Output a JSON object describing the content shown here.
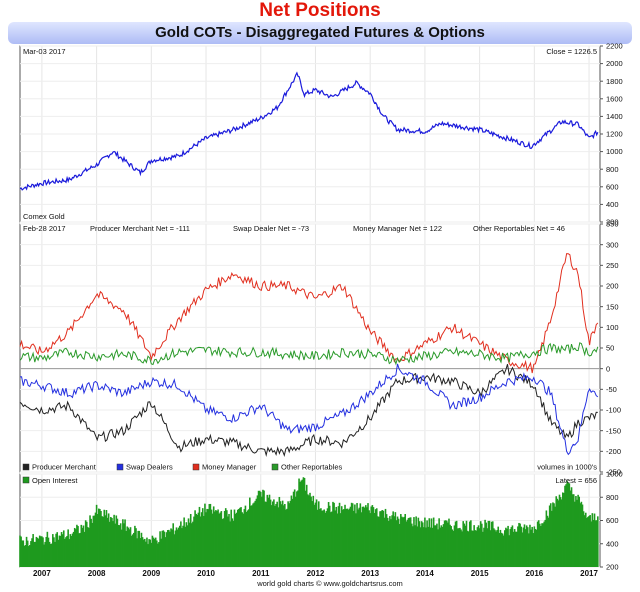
{
  "header": {
    "title": "Net Positions",
    "subtitle": "Gold COTs - Disaggregated Futures & Options"
  },
  "footer": {
    "source": "world gold charts © www.goldchartsrus.com"
  },
  "colors": {
    "price": "#1a1adb",
    "producer": "#222222",
    "swap": "#2430e0",
    "money": "#e12f1f",
    "other": "#2a9a2a",
    "oi": "#1f9a1f"
  },
  "chart_data": [
    {
      "type": "line",
      "panel": "price",
      "date_label": "Mar-03  2017",
      "close_label": "Close = 1226.5",
      "series_label": "Comex Gold",
      "ylim": [
        200,
        2200
      ],
      "yticks": [
        "200",
        "400",
        "600",
        "800",
        "1000",
        "1200",
        "1400",
        "1600",
        "1800",
        "2000",
        "2200"
      ],
      "x": [
        2006.6,
        2007.0,
        2007.5,
        2008.0,
        2008.3,
        2008.8,
        2009.0,
        2009.5,
        2010.0,
        2010.5,
        2011.0,
        2011.3,
        2011.67,
        2011.8,
        2012.0,
        2012.3,
        2012.75,
        2013.0,
        2013.25,
        2013.5,
        2014.0,
        2014.3,
        2015.0,
        2015.5,
        2015.95,
        2016.5,
        2016.8,
        2017.0,
        2017.17
      ],
      "y": [
        580,
        640,
        680,
        850,
        1000,
        760,
        900,
        950,
        1150,
        1250,
        1380,
        1500,
        1880,
        1650,
        1700,
        1620,
        1780,
        1660,
        1400,
        1250,
        1230,
        1320,
        1250,
        1150,
        1060,
        1340,
        1310,
        1150,
        1226
      ]
    },
    {
      "type": "line",
      "panel": "net-positions",
      "date_label": "Feb-28  2017",
      "labels": {
        "producer": "Producer Merchant Net = -111",
        "swap": "Swap Dealer Net = -73",
        "money": "Money Manager Net = 122",
        "other": "Other Reportables Net = 46"
      },
      "units_label": "volumes in 1000's",
      "ylim": [
        -250,
        350
      ],
      "yticks": [
        "-250",
        "-200",
        "-150",
        "-100",
        "-50",
        "0",
        "50",
        "100",
        "150",
        "200",
        "250",
        "300",
        "350"
      ],
      "series": [
        {
          "name": "Producer Merchant",
          "color": "#222222",
          "x": [
            2006.6,
            2007.0,
            2007.5,
            2008.0,
            2008.5,
            2009.0,
            2009.5,
            2010.0,
            2010.5,
            2011.0,
            2011.5,
            2012.0,
            2012.5,
            2013.0,
            2013.5,
            2014.0,
            2014.5,
            2015.0,
            2015.5,
            2016.0,
            2016.3,
            2016.6,
            2016.8,
            2017.17
          ],
          "y": [
            -80,
            -100,
            -90,
            -170,
            -150,
            -80,
            -190,
            -170,
            -180,
            -200,
            -200,
            -170,
            -180,
            -120,
            -30,
            -20,
            -30,
            -60,
            0,
            -40,
            -130,
            -170,
            -130,
            -111
          ]
        },
        {
          "name": "Swap Dealers",
          "color": "#2430e0",
          "x": [
            2006.6,
            2007.0,
            2007.5,
            2008.0,
            2008.5,
            2009.0,
            2009.5,
            2010.0,
            2010.5,
            2011.0,
            2011.5,
            2012.0,
            2012.5,
            2013.0,
            2013.5,
            2014.0,
            2014.5,
            2015.0,
            2015.5,
            2016.0,
            2016.3,
            2016.6,
            2016.8,
            2017.0,
            2017.17
          ],
          "y": [
            -30,
            -40,
            -60,
            -40,
            -60,
            -30,
            -40,
            -100,
            -120,
            -90,
            -150,
            -140,
            -110,
            -60,
            0,
            -30,
            -90,
            -70,
            -30,
            -20,
            -60,
            -200,
            -170,
            -40,
            -73
          ]
        },
        {
          "name": "Money Manager",
          "color": "#e12f1f",
          "x": [
            2006.6,
            2007.0,
            2007.5,
            2008.0,
            2008.5,
            2009.0,
            2009.5,
            2010.0,
            2010.5,
            2011.0,
            2011.5,
            2012.0,
            2012.5,
            2013.0,
            2013.5,
            2014.0,
            2014.5,
            2015.0,
            2015.5,
            2016.0,
            2016.3,
            2016.6,
            2016.8,
            2017.0,
            2017.17
          ],
          "y": [
            60,
            40,
            90,
            180,
            140,
            30,
            120,
            190,
            230,
            200,
            200,
            170,
            200,
            90,
            20,
            60,
            100,
            60,
            20,
            0,
            120,
            280,
            230,
            60,
            122
          ]
        },
        {
          "name": "Other Reportables",
          "color": "#2a9a2a",
          "x": [
            2006.6,
            2007.0,
            2007.5,
            2008.0,
            2008.5,
            2009.0,
            2009.5,
            2010.0,
            2010.5,
            2011.0,
            2011.5,
            2012.0,
            2012.5,
            2013.0,
            2013.5,
            2014.0,
            2014.5,
            2015.0,
            2015.5,
            2016.0,
            2016.3,
            2016.6,
            2016.8,
            2017.0,
            2017.17
          ],
          "y": [
            30,
            25,
            40,
            30,
            35,
            20,
            40,
            45,
            40,
            40,
            35,
            30,
            40,
            35,
            20,
            30,
            40,
            35,
            25,
            40,
            50,
            45,
            55,
            40,
            46
          ]
        }
      ],
      "legend": [
        "Producer Merchant",
        "Swap Dealers",
        "Money Manager",
        "Other Reportables"
      ]
    },
    {
      "type": "bar",
      "panel": "open-interest",
      "series_label": "Open Interest",
      "latest_label": "Latest = 656",
      "ylim": [
        200,
        1000
      ],
      "yticks": [
        "200",
        "400",
        "600",
        "800",
        "1000"
      ],
      "x": [
        2006.6,
        2007.0,
        2007.5,
        2007.8,
        2008.0,
        2008.5,
        2009.0,
        2009.5,
        2010.0,
        2010.5,
        2011.0,
        2011.5,
        2011.75,
        2012.0,
        2012.5,
        2013.0,
        2013.5,
        2014.0,
        2014.5,
        2015.0,
        2015.5,
        2016.0,
        2016.3,
        2016.6,
        2016.8,
        2017.0,
        2017.17
      ],
      "y": [
        420,
        440,
        480,
        550,
        680,
        560,
        420,
        550,
        700,
        640,
        820,
        720,
        960,
        730,
        700,
        710,
        620,
        580,
        560,
        560,
        520,
        540,
        700,
        900,
        780,
        600,
        656
      ]
    }
  ],
  "x_axis": {
    "ticks": [
      "2007",
      "2008",
      "2009",
      "2010",
      "2011",
      "2012",
      "2013",
      "2014",
      "2015",
      "2016",
      "2017"
    ]
  }
}
